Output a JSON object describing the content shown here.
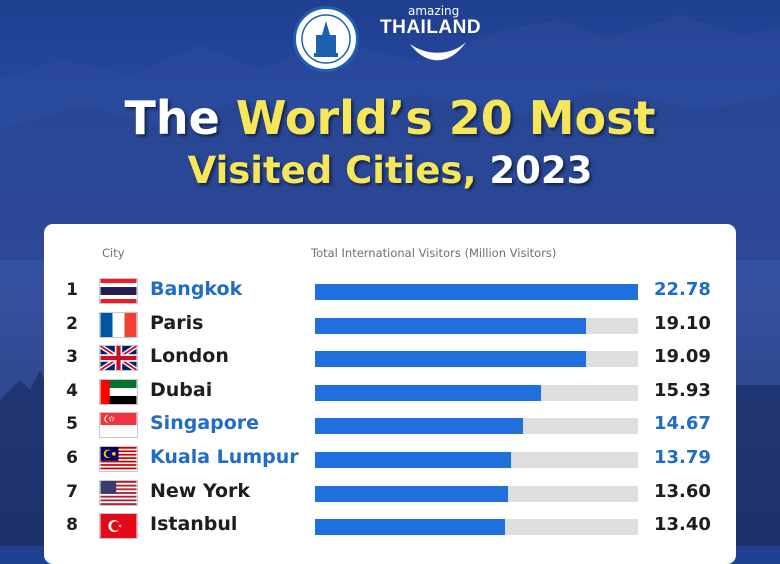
{
  "logos": {
    "amazing_small": "amazing",
    "amazing_big": "THAILAND"
  },
  "title": {
    "line1_part1": "The ",
    "line1_part2": "World’s 20 Most",
    "line2_part1": "Visited Cities, ",
    "line2_part2": "2023"
  },
  "colors": {
    "bar": "#1f6fdc",
    "track": "#dedede",
    "highlight": "#1f6dc6",
    "title_yellow": "#f5e65a"
  },
  "chart_data": {
    "type": "bar",
    "orientation": "horizontal",
    "title": "The World’s 20 Most Visited Cities, 2023",
    "xlabel": "Total International Visitors (Million Visitors)",
    "ylabel": "City",
    "xlim": [
      0,
      22.78
    ],
    "grid": false,
    "rows": [
      {
        "rank": "1",
        "city": "Bangkok",
        "value": 22.78,
        "label": "22.78",
        "flag": "thailand-flag",
        "highlight": true
      },
      {
        "rank": "2",
        "city": "Paris",
        "value": 19.1,
        "label": "19.10",
        "flag": "france-flag",
        "highlight": false
      },
      {
        "rank": "3",
        "city": "London",
        "value": 19.09,
        "label": "19.09",
        "flag": "uk-flag",
        "highlight": false
      },
      {
        "rank": "4",
        "city": "Dubai",
        "value": 15.93,
        "label": "15.93",
        "flag": "uae-flag",
        "highlight": false
      },
      {
        "rank": "5",
        "city": "Singapore",
        "value": 14.67,
        "label": "14.67",
        "flag": "singapore-flag",
        "highlight": true
      },
      {
        "rank": "6",
        "city": "Kuala Lumpur",
        "value": 13.79,
        "label": "13.79",
        "flag": "malaysia-flag",
        "highlight": true
      },
      {
        "rank": "7",
        "city": "New York",
        "value": 13.6,
        "label": "13.60",
        "flag": "usa-flag",
        "highlight": false
      },
      {
        "rank": "8",
        "city": "Istanbul",
        "value": 13.4,
        "label": "13.40",
        "flag": "turkey-flag",
        "highlight": false
      }
    ]
  }
}
